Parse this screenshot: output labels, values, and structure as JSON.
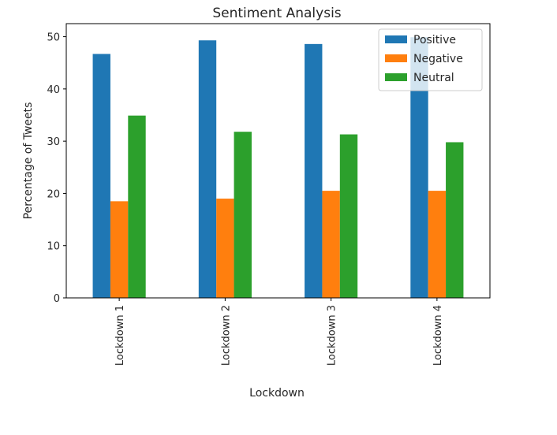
{
  "chart_data": {
    "type": "bar",
    "title": "Sentiment Analysis",
    "xlabel": "Lockdown",
    "ylabel": "Percentage of Tweets",
    "categories": [
      "Lockdown 1",
      "Lockdown 2",
      "Lockdown 3",
      "Lockdown 4"
    ],
    "series": [
      {
        "name": "Positive",
        "color": "#1f77b4",
        "values": [
          46.7,
          49.3,
          48.6,
          49.9
        ]
      },
      {
        "name": "Negative",
        "color": "#ff7f0e",
        "values": [
          18.5,
          19.0,
          20.5,
          20.5
        ]
      },
      {
        "name": "Neutral",
        "color": "#2ca02c",
        "values": [
          34.9,
          31.8,
          31.3,
          29.8
        ]
      }
    ],
    "ylim": [
      0,
      52.5
    ],
    "yticks": [
      "0",
      "10",
      "20",
      "30",
      "40",
      "50"
    ],
    "grid": false,
    "legend": "top-right"
  }
}
